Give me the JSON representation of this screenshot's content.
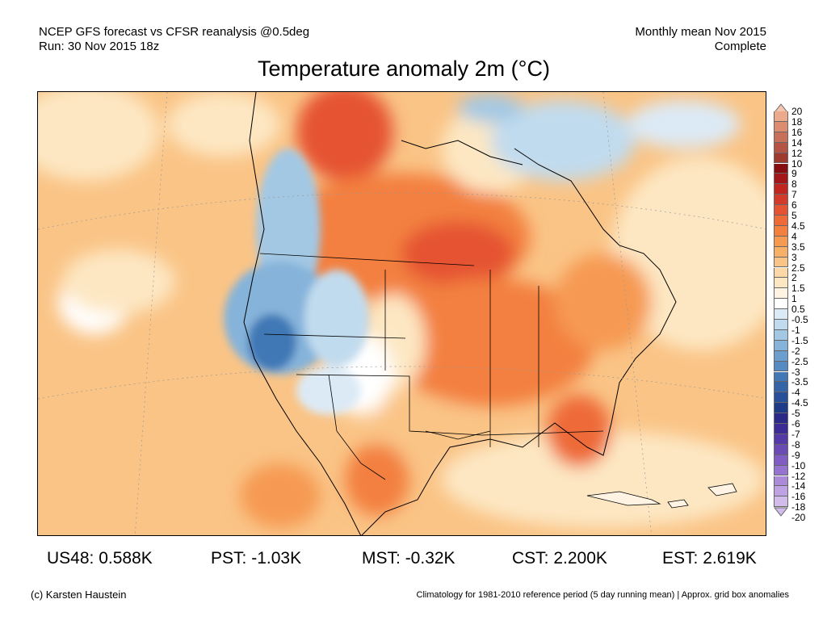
{
  "header": {
    "left_line1": "NCEP GFS forecast vs CFSR reanalysis @0.5deg",
    "left_line2": "Run: 30 Nov 2015 18z",
    "right_line1": "Monthly mean Nov 2015",
    "right_line2": "Complete"
  },
  "title": "Temperature anomaly 2m (°C)",
  "colorbar": {
    "labels": [
      "20",
      "18",
      "16",
      "14",
      "12",
      "10",
      "9",
      "8",
      "7",
      "6",
      "5",
      "4.5",
      "4",
      "3.5",
      "3",
      "2.5",
      "2",
      "1.5",
      "1",
      "0.5",
      "-0.5",
      "-1",
      "-1.5",
      "-2",
      "-2.5",
      "-3",
      "-3.5",
      "-4",
      "-4.5",
      "-5",
      "-6",
      "-7",
      "-8",
      "-9",
      "-10",
      "-12",
      "-14",
      "-16",
      "-18",
      "-20"
    ],
    "colors": [
      "#f5c4ae",
      "#ecaa8d",
      "#dc8d6f",
      "#c9705a",
      "#b55444",
      "#9f3a2f",
      "#870e10",
      "#a3171b",
      "#c1261f",
      "#d33a2a",
      "#e55332",
      "#ee6a37",
      "#f3803f",
      "#f69a52",
      "#f8b069",
      "#fac486",
      "#fcd8a6",
      "#fde7c3",
      "#fff4e4",
      "#ffffff",
      "#dceaf6",
      "#c1dbee",
      "#a3c8e4",
      "#85b3da",
      "#6a9fcf",
      "#548bc3",
      "#4178b6",
      "#3365a8",
      "#284f99",
      "#1e3b8a",
      "#2b2a88",
      "#3c2d96",
      "#533aa6",
      "#6a4bb6",
      "#7f5dc4",
      "#9673d0",
      "#ab8ada",
      "#bfa2e3",
      "#d2bceb"
    ]
  },
  "stats": [
    {
      "label": "US48:",
      "value": "0.588K"
    },
    {
      "label": "PST:",
      "value": "-1.03K"
    },
    {
      "label": "MST:",
      "value": "-0.32K"
    },
    {
      "label": "CST:",
      "value": "2.200K"
    },
    {
      "label": "EST:",
      "value": "2.619K"
    }
  ],
  "footer": {
    "left": "(c) Karsten Haustein",
    "right": "Climatology for 1981-2010 reference period (5 day running mean) | Approx. grid box anomalies"
  }
}
